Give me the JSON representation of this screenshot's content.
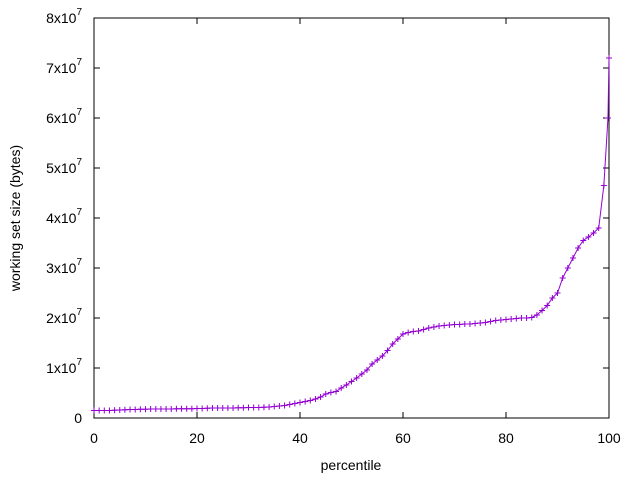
{
  "chart_data": {
    "type": "line",
    "xlabel": "percentile",
    "ylabel": "working set size (bytes)",
    "xlim": [
      0,
      100
    ],
    "ylim": [
      0,
      80000000
    ],
    "xticks": [
      0,
      20,
      40,
      60,
      80,
      100
    ],
    "yticks": [
      0,
      {
        "value": 10000000,
        "label": "1x10",
        "exponent": "7"
      },
      {
        "value": 20000000,
        "label": "2x10",
        "exponent": "7"
      },
      {
        "value": 30000000,
        "label": "3x10",
        "exponent": "7"
      },
      {
        "value": 40000000,
        "label": "4x10",
        "exponent": "7"
      },
      {
        "value": 50000000,
        "label": "5x10",
        "exponent": "7"
      },
      {
        "value": 60000000,
        "label": "6x10",
        "exponent": "7"
      },
      {
        "value": 70000000,
        "label": "7x10",
        "exponent": "7"
      },
      {
        "value": 80000000,
        "label": "8x10",
        "exponent": "7"
      }
    ],
    "grid": false,
    "series": [
      {
        "color": "#9400d3",
        "x": [
          0,
          1,
          2,
          3,
          4,
          5,
          6,
          7,
          8,
          9,
          10,
          11,
          12,
          13,
          14,
          15,
          16,
          17,
          18,
          19,
          20,
          21,
          22,
          23,
          24,
          25,
          26,
          27,
          28,
          29,
          30,
          31,
          32,
          33,
          34,
          35,
          36,
          37,
          38,
          39,
          40,
          41,
          42,
          43,
          44,
          45,
          46,
          47,
          48,
          49,
          50,
          51,
          52,
          53,
          54,
          55,
          56,
          57,
          58,
          59,
          60,
          61,
          62,
          63,
          64,
          65,
          66,
          67,
          68,
          69,
          70,
          71,
          72,
          73,
          74,
          75,
          76,
          77,
          78,
          79,
          80,
          81,
          82,
          83,
          84,
          85,
          86,
          87,
          88,
          89,
          90,
          91,
          92,
          93,
          94,
          95,
          96,
          97,
          98,
          99,
          99.8,
          100
        ],
        "values": [
          1500000,
          1500000,
          1500000,
          1500000,
          1550000,
          1600000,
          1650000,
          1700000,
          1700000,
          1750000,
          1750000,
          1800000,
          1800000,
          1800000,
          1800000,
          1800000,
          1850000,
          1850000,
          1850000,
          1850000,
          1900000,
          1900000,
          1950000,
          2000000,
          2000000,
          2000000,
          2000000,
          2000000,
          2050000,
          2050000,
          2100000,
          2100000,
          2100000,
          2150000,
          2200000,
          2300000,
          2400000,
          2500000,
          2700000,
          2900000,
          3100000,
          3300000,
          3500000,
          3800000,
          4200000,
          4800000,
          5100000,
          5300000,
          6000000,
          6600000,
          7300000,
          8000000,
          8800000,
          9600000,
          10800000,
          11600000,
          12400000,
          13500000,
          14800000,
          15800000,
          16800000,
          17100000,
          17300000,
          17400000,
          17700000,
          18000000,
          18200000,
          18400000,
          18500000,
          18600000,
          18700000,
          18700000,
          18800000,
          18800000,
          18900000,
          19000000,
          19100000,
          19300000,
          19500000,
          19600000,
          19700000,
          19800000,
          19900000,
          20000000,
          20000000,
          20100000,
          20600000,
          21500000,
          22500000,
          24000000,
          25000000,
          28000000,
          30000000,
          32000000,
          34000000,
          35500000,
          36200000,
          37000000,
          38000000,
          46500000,
          60000000,
          72000000
        ]
      }
    ]
  }
}
